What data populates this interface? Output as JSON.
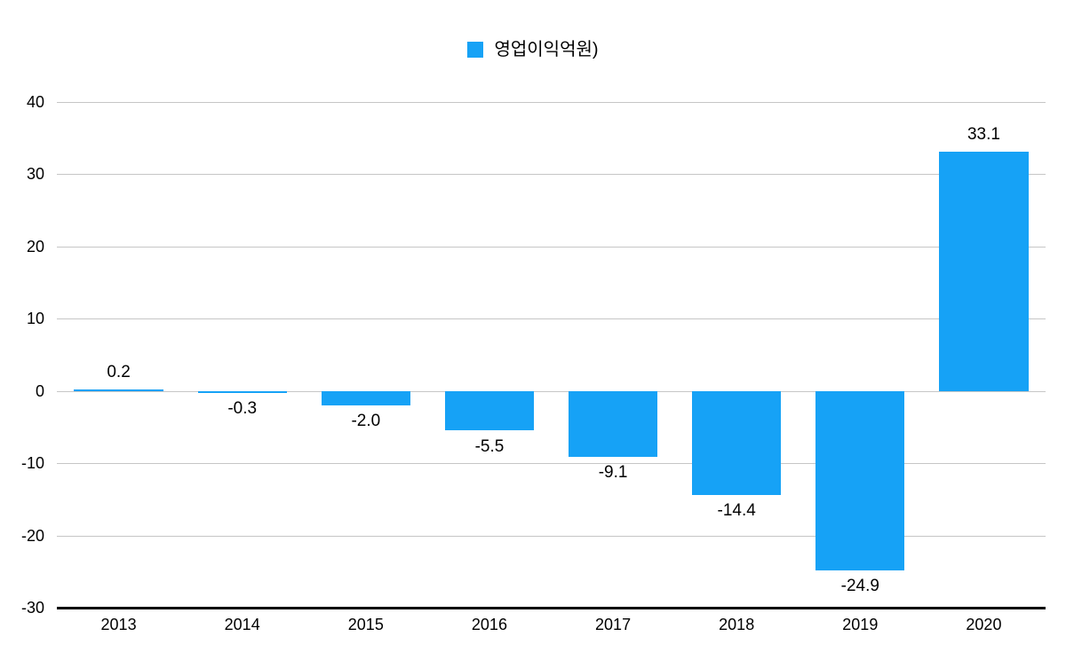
{
  "legend": {
    "label": "영업이익억원)",
    "swatch_color": "#16a2f6"
  },
  "chart_data": {
    "type": "bar",
    "title": "",
    "xlabel": "",
    "ylabel": "",
    "categories": [
      "2013",
      "2014",
      "2015",
      "2016",
      "2017",
      "2018",
      "2019",
      "2020"
    ],
    "series": [
      {
        "name": "영업이익억원)",
        "values": [
          0.2,
          -0.3,
          -2.0,
          -5.5,
          -9.1,
          -14.4,
          -24.9,
          33.1
        ],
        "labels": [
          "0.2",
          "-0.3",
          "-2.0",
          "-5.5",
          "-9.1",
          "-14.4",
          "-24.9",
          "33.1"
        ],
        "color": "#16a2f6"
      }
    ],
    "ylim": [
      -30,
      40
    ],
    "ytick_step": 10,
    "yticks": [
      40,
      30,
      20,
      10,
      0,
      -10,
      -20,
      -30
    ],
    "grid": true,
    "gridline_color": "#c6c6c6",
    "axis_color": "#000000",
    "legend_position": "top-center"
  }
}
